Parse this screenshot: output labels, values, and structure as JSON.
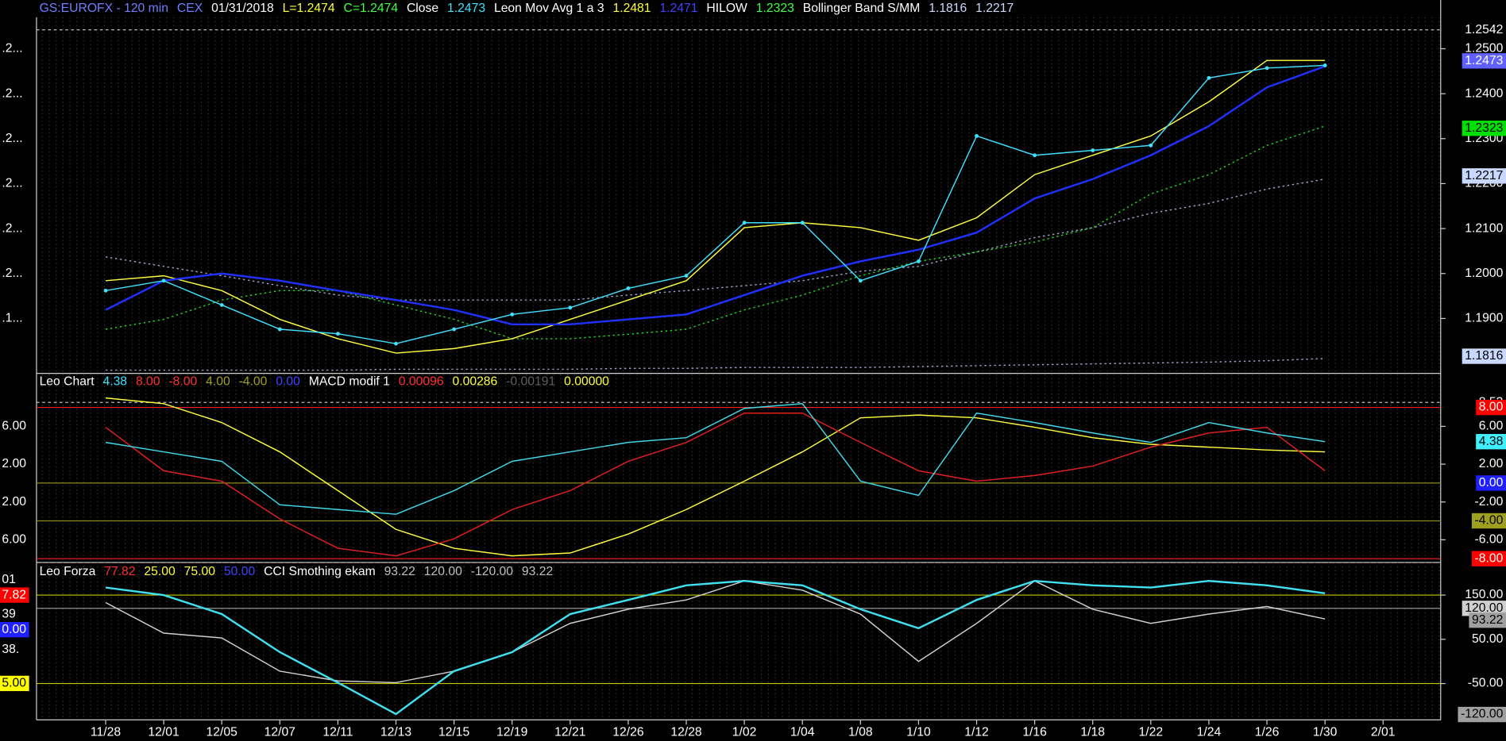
{
  "chart_data": [
    {
      "type": "line",
      "header": [
        {
          "text": "GS:EUROFX - 120 min",
          "color": "#6f7fff"
        },
        {
          "text": "CEX",
          "color": "#6f7fff"
        },
        {
          "text": "01/31/2018",
          "color": "#ffffff"
        },
        {
          "text": "L=1.2474",
          "color": "#ffff40"
        },
        {
          "text": "C=1.2474",
          "color": "#40ff40"
        },
        {
          "text": "Close",
          "color": "#ffffff"
        },
        {
          "text": "1.2473",
          "color": "#40e0ff"
        },
        {
          "text": "Leon Mov Avg 1 a 3",
          "color": "#ffffff"
        },
        {
          "text": "1.2481",
          "color": "#ffff40"
        },
        {
          "text": "1.2471",
          "color": "#4040ff"
        },
        {
          "text": "HILOW",
          "color": "#ffffff"
        },
        {
          "text": "1.2323",
          "color": "#40ff40"
        },
        {
          "text": "Bollinger Band S/MM",
          "color": "#ffffff"
        },
        {
          "text": "1.1816",
          "color": "#c8d8ff"
        },
        {
          "text": "1.2217",
          "color": "#c8d8ff"
        }
      ],
      "ylim": [
        1.178,
        1.257
      ],
      "yticks": [
        {
          "value": 1.25,
          "label": "1.2500",
          "left": ".2..."
        },
        {
          "value": 1.24,
          "label": "1.2400",
          "left": ".2..."
        },
        {
          "value": 1.23,
          "label": "1.2300",
          "left": ".2..."
        },
        {
          "value": 1.22,
          "label": "1.2200",
          "left": ".2..."
        },
        {
          "value": 1.21,
          "label": "1.2100",
          "left": ".2..."
        },
        {
          "value": 1.2,
          "label": "1.2000",
          "left": ".2..."
        },
        {
          "value": 1.19,
          "label": "1.1900",
          "left": ".1..."
        }
      ],
      "markers": [
        {
          "value": 1.2542,
          "bg": "#000000",
          "fg": "#ffffff",
          "line": "#bbbbbb"
        },
        {
          "value": 1.2473,
          "bg": "#6060ff",
          "fg": "#ffffff"
        },
        {
          "value": 1.2323,
          "bg": "#00e000",
          "fg": "#000000"
        },
        {
          "value": 1.2217,
          "bg": "#c8d8ff",
          "fg": "#000000"
        },
        {
          "value": 1.1816,
          "bg": "#c8d8ff",
          "fg": "#000000"
        }
      ],
      "series": [
        {
          "color": "#9aa0c8",
          "dash": true,
          "values": [
            1.2037,
            1.2016,
            1.1995,
            1.1973,
            1.1952,
            1.1941,
            1.1941,
            1.1941,
            1.1941,
            1.1952,
            1.1962,
            1.1973,
            1.1984,
            1.2005,
            1.2016,
            1.2048,
            1.208,
            1.2102,
            1.2134,
            1.2156,
            1.2188,
            1.221,
            null
          ]
        },
        {
          "color": "#9aa0c8",
          "dash": true,
          "values": [
            1.1785,
            1.1785,
            1.1785,
            1.1785,
            1.1785,
            1.1787,
            1.1787,
            1.1787,
            1.1787,
            1.1789,
            1.1789,
            1.1791,
            1.1791,
            1.1791,
            1.1793,
            1.1795,
            1.1797,
            1.1799,
            1.1801,
            1.1803,
            1.1806,
            1.1811,
            null
          ]
        },
        {
          "color": "#20d020",
          "dash": true,
          "values": [
            1.1876,
            1.1898,
            1.1941,
            1.1962,
            1.1962,
            1.193,
            1.1898,
            1.1855,
            1.1855,
            1.1865,
            1.1876,
            1.1919,
            1.1952,
            1.1995,
            1.2027,
            1.2048,
            1.207,
            1.2102,
            1.2177,
            1.222,
            1.2285,
            1.2328,
            null
          ]
        },
        {
          "color": "#ffff40",
          "values": [
            1.1984,
            1.1995,
            1.1962,
            1.1898,
            1.1855,
            1.1823,
            1.1833,
            1.1855,
            1.1898,
            1.1941,
            1.1984,
            1.2102,
            1.2113,
            1.2102,
            1.2074,
            1.2124,
            1.222,
            1.2263,
            1.2306,
            1.2382,
            1.2474,
            1.2474,
            null
          ]
        },
        {
          "color": "#2030ff",
          "width": 2,
          "values": [
            1.1919,
            1.1984,
            1.2,
            1.1984,
            1.1962,
            1.1941,
            1.1919,
            1.1887,
            1.1887,
            1.1898,
            1.1909,
            1.1952,
            1.1995,
            1.2027,
            1.2053,
            1.2091,
            1.2167,
            1.221,
            1.2263,
            1.2328,
            1.2414,
            1.2461,
            null
          ]
        },
        {
          "color": "#40e0ff",
          "dots": true,
          "values": [
            1.1962,
            1.1984,
            1.193,
            1.1876,
            1.1866,
            1.1844,
            1.1876,
            1.1909,
            1.1924,
            1.1967,
            1.1995,
            1.2113,
            1.2113,
            1.1984,
            1.2027,
            1.2306,
            1.2263,
            1.2274,
            1.2285,
            1.2435,
            1.2457,
            1.2463,
            null
          ]
        }
      ]
    },
    {
      "type": "line",
      "header": [
        {
          "text": "Leo Chart",
          "color": "#ffffff"
        },
        {
          "text": "4.38",
          "color": "#40e0ff"
        },
        {
          "text": "8.00",
          "color": "#ff3030"
        },
        {
          "text": "-8.00",
          "color": "#ff3030"
        },
        {
          "text": "4.00",
          "color": "#a0a020"
        },
        {
          "text": "-4.00",
          "color": "#a0a020"
        },
        {
          "text": "0.00",
          "color": "#4040ff"
        },
        {
          "text": "MACD modif 1",
          "color": "#ffffff"
        },
        {
          "text": "0.00096",
          "color": "#ff3030"
        },
        {
          "text": "0.00286",
          "color": "#ffff40"
        },
        {
          "text": "-0.00191",
          "color": "#606060"
        },
        {
          "text": "0.00000",
          "color": "#ffff40"
        }
      ],
      "ylim": [
        -8.3,
        11.3
      ],
      "yticks": [
        {
          "value": 6,
          "label": "6.00",
          "left": "6.00"
        },
        {
          "value": 2,
          "label": "2.00",
          "left": "2.00"
        },
        {
          "value": -2,
          "label": "-2.00",
          "left": "2.00"
        },
        {
          "value": -6,
          "label": "-6.00",
          "left": "6.00"
        }
      ],
      "markers": [
        {
          "value": 8.53,
          "bg": "#000000",
          "fg": "#ffffff",
          "line": "#bbbbbb"
        },
        {
          "value": 8,
          "label": "8.00",
          "bg": "#ff0000",
          "fg": "#ffffff",
          "line": "#ff2020"
        },
        {
          "value": 4.38,
          "bg": "#40f0ff",
          "fg": "#000000"
        },
        {
          "value": 0,
          "label": "0.00",
          "bg": "#2020ff",
          "fg": "#ffffff",
          "line": "#8a8a20"
        },
        {
          "value": -4,
          "label": "-4.00",
          "bg": "#a0a020",
          "fg": "#000000",
          "line": "#8a8a20"
        },
        {
          "value": -8,
          "label": "-8.00",
          "bg": "#ff0000",
          "fg": "#ffffff",
          "line": "#ff2020"
        }
      ],
      "series": [
        {
          "color": "#ffff40",
          "values": [
            9.0,
            8.4,
            6.4,
            3.3,
            -0.8,
            -4.9,
            -6.9,
            -7.7,
            -7.4,
            -5.4,
            -2.8,
            0.2,
            3.3,
            6.9,
            7.2,
            6.9,
            5.9,
            4.8,
            4.1,
            3.8,
            3.5,
            3.3,
            null
          ]
        },
        {
          "color": "#e02020",
          "values": [
            5.9,
            1.3,
            0.2,
            -3.8,
            -6.9,
            -7.7,
            -5.9,
            -2.8,
            -0.8,
            2.3,
            4.3,
            7.4,
            7.4,
            4.3,
            1.3,
            0.2,
            0.8,
            1.8,
            3.8,
            5.3,
            5.9,
            1.3,
            null
          ]
        },
        {
          "color": "#40d8e8",
          "values": [
            4.3,
            3.3,
            2.3,
            -2.3,
            -2.8,
            -3.3,
            -0.8,
            2.3,
            3.3,
            4.3,
            4.8,
            7.9,
            8.4,
            0.2,
            -1.3,
            7.4,
            6.4,
            5.3,
            4.3,
            6.4,
            5.3,
            4.38,
            null
          ]
        }
      ]
    },
    {
      "type": "line",
      "header": [
        {
          "text": "Leo Forza",
          "color": "#ffffff"
        },
        {
          "text": "77.82",
          "color": "#ff3030"
        },
        {
          "text": "25.00",
          "color": "#ffff40"
        },
        {
          "text": "75.00",
          "color": "#ffff40"
        },
        {
          "text": "50.00",
          "color": "#4040ff"
        },
        {
          "text": "CCI Smothing ekam",
          "color": "#ffffff"
        },
        {
          "text": "93.22",
          "color": "#c0c0c0"
        },
        {
          "text": "120.00",
          "color": "#c0c0c0"
        },
        {
          "text": "-120.00",
          "color": "#c0c0c0"
        },
        {
          "text": "93.22",
          "color": "#c0c0c0"
        }
      ],
      "ylim": [
        -130,
        215
      ],
      "yticks": [
        {
          "value": 150,
          "label": "150.00",
          "line": "#c8c800"
        },
        {
          "value": 50,
          "label": "50.00"
        },
        {
          "value": -50,
          "label": "-50.00",
          "line": "#c8c800"
        }
      ],
      "markers": [
        {
          "value": 120,
          "label": "120.00",
          "bg": "#d0d0d0",
          "fg": "#000000",
          "line": "#909090"
        },
        {
          "value": 93.22,
          "bg": "#a0a0a0",
          "fg": "#000000"
        },
        {
          "value": -120,
          "label": "-120.00",
          "bg": "#a0a0a0",
          "fg": "#000000"
        }
      ],
      "left_labels": [
        {
          "text": "01",
          "bg": "#000000",
          "fg": "#ffffff"
        },
        {
          "text": "7.82",
          "bg": "#ff0000",
          "fg": "#ffffff"
        },
        {
          "text": "39",
          "bg": "#000000",
          "fg": "#ffffff"
        },
        {
          "text": "0.00",
          "bg": "#2020ff",
          "fg": "#ffffff"
        },
        {
          "text": "38.",
          "bg": "#000000",
          "fg": "#ffffff"
        },
        {
          "text": "5.00",
          "bg": "#ffff00",
          "fg": "#000000"
        }
      ],
      "series": [
        {
          "color": "#d0d0d0",
          "values": [
            133,
            64,
            53,
            -22,
            -44,
            -48,
            -22,
            21,
            86,
            118,
            139,
            182,
            161,
            107,
            0,
            86,
            182,
            118,
            86,
            107,
            124,
            96,
            null
          ]
        },
        {
          "color": "#40e0f0",
          "width": 2,
          "values": [
            167,
            150,
            107,
            21,
            -48,
            -119,
            -22,
            21,
            107,
            139,
            172,
            182,
            172,
            118,
            75,
            139,
            182,
            172,
            167,
            182,
            172,
            154,
            null
          ]
        }
      ],
      "categories": [
        "11/28",
        "12/01",
        "12/05",
        "12/07",
        "12/11",
        "12/13",
        "12/15",
        "12/19",
        "12/21",
        "12/26",
        "12/28",
        "1/02",
        "1/04",
        "1/08",
        "1/10",
        "1/12",
        "1/16",
        "1/18",
        "1/22",
        "1/24",
        "1/26",
        "1/30",
        "2/01"
      ]
    }
  ]
}
